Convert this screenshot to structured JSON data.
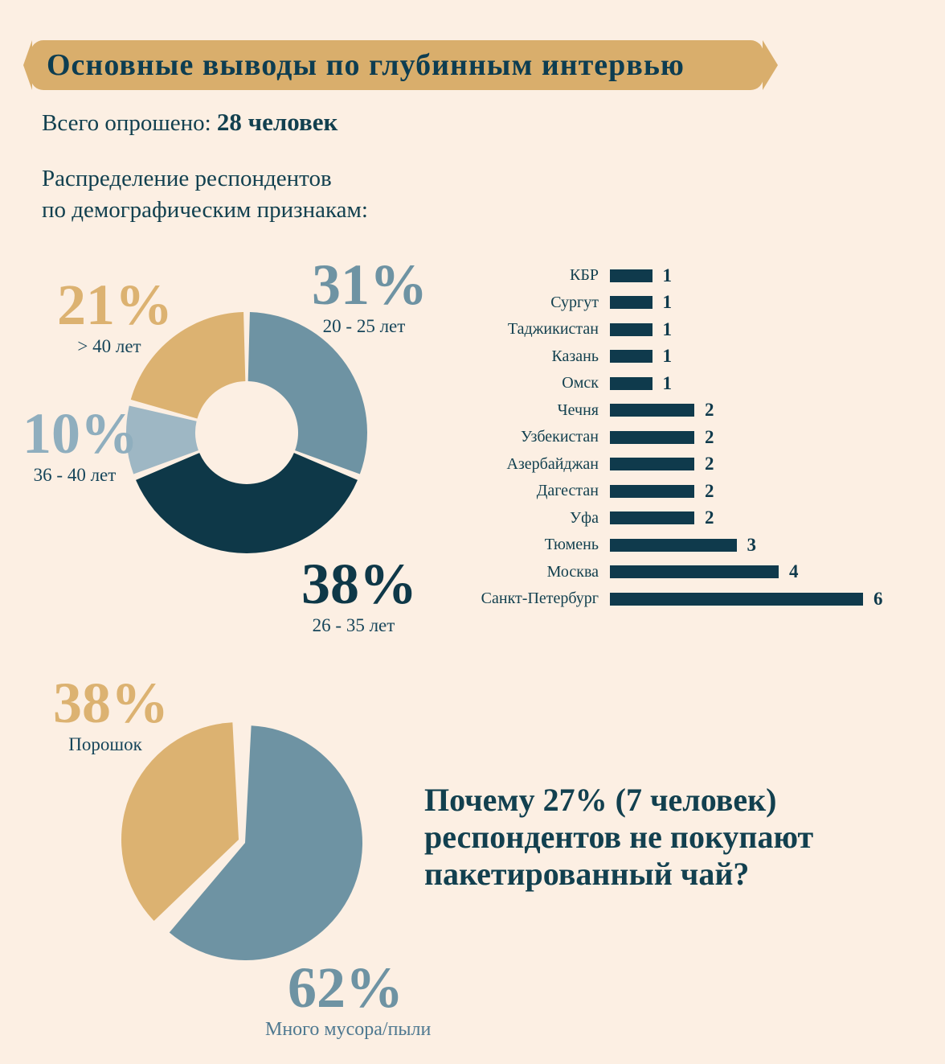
{
  "palette": {
    "background": "#FCEFE3",
    "banner_gold": "#D9AE6C",
    "dark_teal": "#0F3A4C",
    "medium_blue": "#6E93A3",
    "light_blue": "#9EB7C4",
    "gold": "#DCB271",
    "text": "#12404F"
  },
  "header": {
    "title": "Основные выводы по глубинным интервью"
  },
  "intro": {
    "surveyed_label": "Всего опрошено:",
    "surveyed_value": "28 человек",
    "distribution_line1": "Распределение респондентов",
    "distribution_line2": "по демографическим признакам:"
  },
  "question": {
    "lines": [
      "Почему 27% (7 человек)",
      "респондентов не покупают",
      "пакетированный чай?"
    ]
  },
  "chart_data": [
    {
      "id": "age_donut",
      "type": "pie",
      "subtype": "donut",
      "title": "Распределение респондентов по демографическим признакам",
      "unit": "percent",
      "start_angle_deg": 0,
      "clockwise": true,
      "slices": [
        {
          "label": "20 - 25 лет",
          "value": 31,
          "pct_text": "31%",
          "color": "#6E93A3"
        },
        {
          "label": "26 - 35 лет",
          "value": 38,
          "pct_text": "38%",
          "color": "#0E3848"
        },
        {
          "label": "36 - 40 лет",
          "value": 10,
          "pct_text": "10%",
          "color": "#9EB7C4"
        },
        {
          "label": "> 40 лет",
          "value": 21,
          "pct_text": "21%",
          "color": "#DCB271"
        }
      ]
    },
    {
      "id": "geo_bars",
      "type": "bar",
      "orientation": "horizontal",
      "title": "География респондентов",
      "categories": [
        "КБР",
        "Сургут",
        "Таджикистан",
        "Казань",
        "Омск",
        "Чечня",
        "Узбекистан",
        "Азербайджан",
        "Дагестан",
        "Уфа",
        "Тюмень",
        "Москва",
        "Санкт-Петербург"
      ],
      "values": [
        1,
        1,
        1,
        1,
        1,
        2,
        2,
        2,
        2,
        2,
        3,
        4,
        6
      ],
      "bar_color": "#0F3A4C",
      "xlim": [
        0,
        6
      ],
      "grid": false,
      "value_labels": true
    },
    {
      "id": "reasons_pie",
      "type": "pie",
      "title": "Почему респонденты не покупают пакетированный чай",
      "unit": "percent",
      "start_angle_deg": 0,
      "clockwise": true,
      "slices": [
        {
          "label": "Много мусора/пыли",
          "value": 62,
          "pct_text": "62%",
          "color": "#6E93A3"
        },
        {
          "label": "Порошок",
          "value": 38,
          "pct_text": "38%",
          "color": "#DCB271"
        }
      ]
    }
  ]
}
